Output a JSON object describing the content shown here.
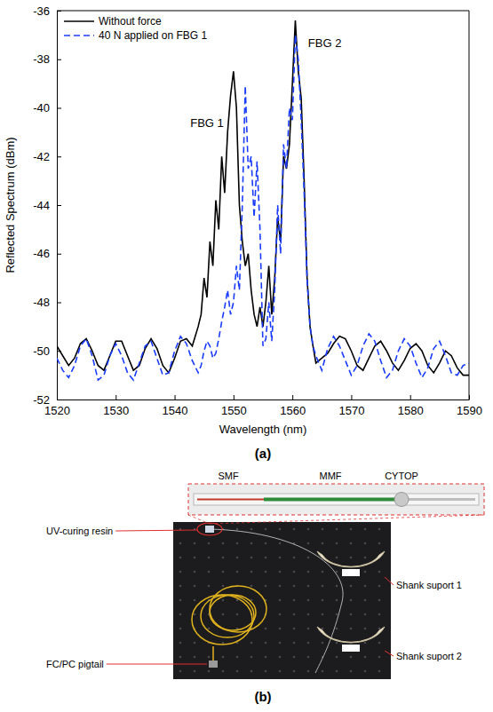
{
  "chart_data": {
    "type": "line",
    "xlabel": "Wavelength (nm)",
    "ylabel": "Reflected Spectrum (dBm)",
    "x": [
      1520,
      1521,
      1522,
      1523,
      1524,
      1525,
      1526,
      1527,
      1528,
      1529,
      1530,
      1531,
      1532,
      1533,
      1534,
      1535,
      1536,
      1537,
      1538,
      1539,
      1540,
      1541,
      1542,
      1543,
      1544,
      1544.5,
      1545,
      1545.5,
      1546,
      1546.5,
      1547,
      1547.5,
      1548,
      1548.5,
      1549,
      1549.5,
      1550,
      1550.5,
      1551,
      1551.5,
      1552,
      1552.5,
      1553,
      1553.5,
      1554,
      1554.5,
      1555,
      1555.5,
      1556,
      1556.5,
      1557,
      1557.5,
      1558,
      1558.5,
      1559,
      1559.5,
      1560,
      1560.5,
      1561,
      1561.5,
      1562,
      1562.5,
      1563,
      1563.5,
      1564,
      1565,
      1566,
      1567,
      1568,
      1569,
      1570,
      1571,
      1572,
      1573,
      1574,
      1575,
      1576,
      1577,
      1578,
      1579,
      1580,
      1581,
      1582,
      1583,
      1584,
      1585,
      1586,
      1587,
      1588,
      1589,
      1590
    ],
    "series": [
      {
        "name": "Without force",
        "color": "#000000",
        "line_style": "solid",
        "values": [
          -49.8,
          -50.2,
          -50.6,
          -50.3,
          -49.7,
          -49.5,
          -50.0,
          -50.6,
          -50.8,
          -50.2,
          -49.6,
          -49.6,
          -50.2,
          -50.8,
          -50.6,
          -49.9,
          -49.5,
          -49.9,
          -50.6,
          -50.9,
          -50.3,
          -49.6,
          -49.5,
          -49.8,
          -49.0,
          -48.5,
          -47.0,
          -47.8,
          -45.5,
          -46.5,
          -43.8,
          -45.0,
          -42.0,
          -43.5,
          -41.0,
          -39.5,
          -38.5,
          -40.0,
          -44.0,
          -45.5,
          -46.5,
          -46.0,
          -47.5,
          -48.5,
          -49.0,
          -48.2,
          -49.0,
          -48.0,
          -46.5,
          -48.5,
          -47.0,
          -44.5,
          -45.5,
          -42.0,
          -42.5,
          -41.5,
          -39.0,
          -36.4,
          -38.5,
          -39.6,
          -43.0,
          -47.0,
          -49.0,
          -49.8,
          -50.5,
          -50.3,
          -50.1,
          -49.7,
          -49.4,
          -49.5,
          -50.0,
          -50.6,
          -50.8,
          -50.3,
          -49.8,
          -49.6,
          -50.0,
          -50.5,
          -50.8,
          -50.4,
          -49.9,
          -49.7,
          -50.0,
          -50.6,
          -50.9,
          -50.5,
          -50.0,
          -50.2,
          -50.7,
          -51.0,
          -51.0
        ]
      },
      {
        "name": "40 N applied on FBG 1",
        "color": "#1a3cff",
        "line_style": "dashed",
        "values": [
          -50.3,
          -50.8,
          -51.1,
          -50.6,
          -49.8,
          -49.5,
          -50.2,
          -51.2,
          -51.0,
          -50.2,
          -49.7,
          -50.2,
          -50.9,
          -51.2,
          -50.5,
          -49.8,
          -49.6,
          -50.3,
          -51.0,
          -50.9,
          -50.0,
          -49.4,
          -49.7,
          -50.4,
          -50.9,
          -50.6,
          -50.0,
          -49.6,
          -49.8,
          -50.3,
          -50.1,
          -49.5,
          -48.8,
          -48.2,
          -47.5,
          -48.5,
          -48.0,
          -46.5,
          -47.5,
          -44.0,
          -39.1,
          -42.5,
          -42.0,
          -44.5,
          -42.2,
          -45.0,
          -49.8,
          -49.5,
          -48.0,
          -49.6,
          -47.5,
          -44.0,
          -46.0,
          -41.5,
          -42.5,
          -40.0,
          -40.5,
          -37.0,
          -38.0,
          -40.5,
          -43.5,
          -47.0,
          -49.0,
          -49.8,
          -50.2,
          -50.8,
          -49.9,
          -49.4,
          -49.8,
          -50.4,
          -51.0,
          -50.6,
          -49.8,
          -49.3,
          -49.6,
          -50.4,
          -51.1,
          -50.8,
          -50.0,
          -49.5,
          -49.8,
          -50.5,
          -51.1,
          -50.7,
          -49.9,
          -49.6,
          -50.2,
          -50.9,
          -51.0,
          -50.6,
          -50.5
        ]
      }
    ],
    "annotations": [
      {
        "text": "FBG 1",
        "x": 1545.5,
        "y": -40.8
      },
      {
        "text": "FBG 2",
        "x": 1565.5,
        "y": -37.5
      }
    ],
    "xlim": [
      1520,
      1590
    ],
    "xticks": [
      1520,
      1530,
      1540,
      1550,
      1560,
      1570,
      1580,
      1590
    ],
    "ylim": [
      -52,
      -36
    ],
    "yticks": [
      -52,
      -50,
      -48,
      -46,
      -44,
      -42,
      -40,
      -38,
      -36
    ],
    "grid": false,
    "legend": "upper left"
  },
  "panel_a": {
    "label": "(a)"
  },
  "panel_b": {
    "label": "(b)",
    "inset_labels": [
      "SMF",
      "MMF",
      "CYTOP"
    ],
    "callouts": [
      "UV-curing resin",
      "FC/PC pigtail",
      "Shank suport 1",
      "Shank suport 2"
    ]
  }
}
